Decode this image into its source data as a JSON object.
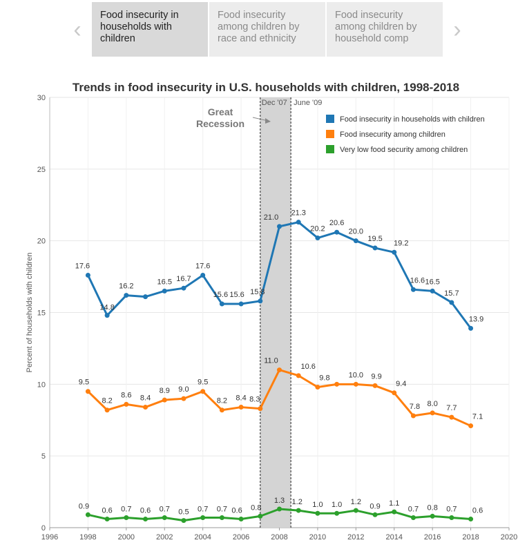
{
  "nav": {
    "prev_icon": "chevron-left-icon",
    "next_icon": "chevron-right-icon",
    "tabs": [
      {
        "label": "Food insecurity in households with children",
        "active": true
      },
      {
        "label": "Food insecurity among children by race and ethnicity",
        "active": false
      },
      {
        "label": "Food insecurity among children by household comp",
        "active": false
      }
    ]
  },
  "chart_data": {
    "type": "line",
    "title": "Trends in food insecurity in U.S. households with children, 1998-2018",
    "ylabel": "Percent of households with children",
    "xlabel": "",
    "xlim": [
      1996,
      2020
    ],
    "ylim": [
      0,
      30
    ],
    "x_ticks": [
      1996,
      1998,
      2000,
      2002,
      2004,
      2006,
      2008,
      2010,
      2012,
      2014,
      2016,
      2018,
      2020
    ],
    "y_ticks": [
      0,
      5,
      10,
      15,
      20,
      25,
      30
    ],
    "grid": true,
    "legend_position": "top-right",
    "x": [
      1998,
      1999,
      2000,
      2001,
      2002,
      2003,
      2004,
      2005,
      2006,
      2007,
      2008,
      2009,
      2010,
      2011,
      2012,
      2013,
      2014,
      2015,
      2016,
      2017,
      2018
    ],
    "series": [
      {
        "name": "Food insecurity in households with children",
        "color": "#1f77b4",
        "values": [
          17.6,
          14.8,
          16.2,
          16.1,
          16.5,
          16.7,
          17.6,
          15.6,
          15.6,
          15.8,
          21.0,
          21.3,
          20.2,
          20.6,
          20.0,
          19.5,
          19.2,
          16.6,
          16.5,
          15.7,
          13.9
        ],
        "labels": [
          "17.6",
          "14.8",
          "16.2",
          "",
          "16.5",
          "16.7",
          "17.6",
          "15.6",
          "15.6",
          "15.8",
          "21.0",
          "21.3",
          "20.2",
          "20.6",
          "20.0",
          "19.5",
          "19.2",
          "16.6",
          "16.5",
          "15.7",
          "13.9"
        ]
      },
      {
        "name": "Food insecurity among children",
        "color": "#ff7f0e",
        "values": [
          9.5,
          8.2,
          8.6,
          8.4,
          8.9,
          9.0,
          9.5,
          8.2,
          8.4,
          8.3,
          11.0,
          10.6,
          9.8,
          10.0,
          10.0,
          9.9,
          9.4,
          7.8,
          8.0,
          7.7,
          7.1
        ],
        "labels": [
          "9.5",
          "8.2",
          "8.6",
          "8.4",
          "8.9",
          "9.0",
          "9.5",
          "8.2",
          "8.4",
          "8.3",
          "11.0",
          "10.6",
          "9.8",
          "",
          "10.0",
          "9.9",
          "9.4",
          "7.8",
          "8.0",
          "7.7",
          "7.1"
        ]
      },
      {
        "name": "Very low food security among children",
        "color": "#2ca02c",
        "values": [
          0.9,
          0.6,
          0.7,
          0.6,
          0.7,
          0.5,
          0.7,
          0.7,
          0.6,
          0.8,
          1.3,
          1.2,
          1.0,
          1.0,
          1.2,
          0.9,
          1.1,
          0.7,
          0.8,
          0.7,
          0.6
        ],
        "labels": [
          "0.9",
          "0.6",
          "0.7",
          "0.6",
          "0.7",
          "0.5",
          "0.7",
          "0.7",
          "0.6",
          "0.8",
          "1.3",
          "1.2",
          "1.0",
          "1.0",
          "1.2",
          "0.9",
          "1.1",
          "0.7",
          "0.8",
          "0.7",
          "0.6"
        ]
      }
    ],
    "recession_band": {
      "start": 2007.0,
      "end": 2008.6,
      "start_label": "Dec '07",
      "end_label": "June '09"
    },
    "annotation": {
      "line1": "Great",
      "line2": "Recession"
    }
  }
}
